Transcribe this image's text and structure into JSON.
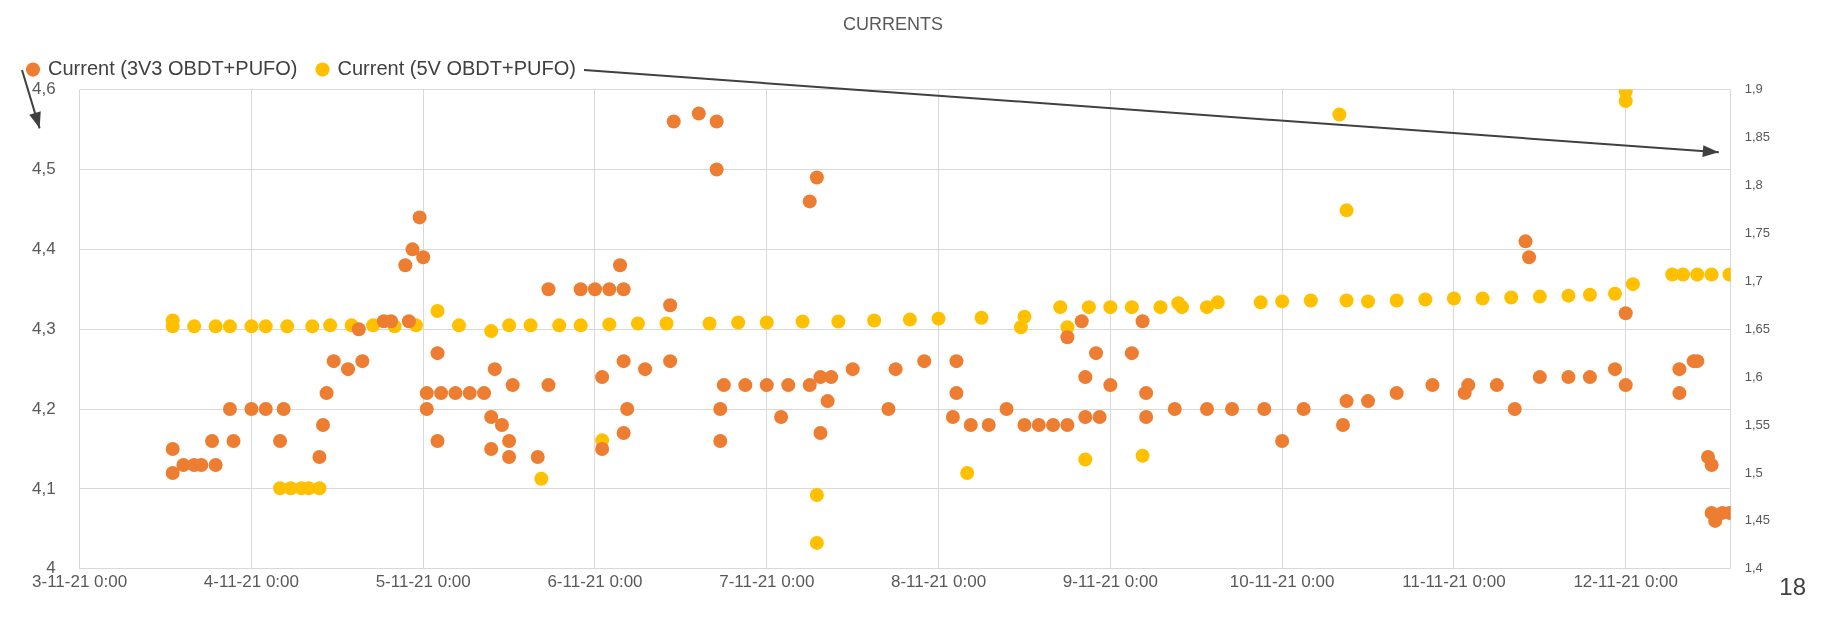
{
  "chart_data": {
    "type": "scatter",
    "title": "CURRENTS",
    "grid": true,
    "legend": "top left",
    "marker": "circle",
    "annotations": [
      "18"
    ],
    "xlim": [
      "--11-03",
      "--11-12T14:40"
    ],
    "xticks": [
      {
        "value": "--11-03",
        "label": "3-11-21 0:00"
      },
      {
        "value": "--11-04",
        "label": "4-11-21 0:00"
      },
      {
        "value": "--11-05",
        "label": "5-11-21 0:00"
      },
      {
        "value": "--11-06",
        "label": "6-11-21 0:00"
      },
      {
        "value": "--11-07",
        "label": "7-11-21 0:00"
      },
      {
        "value": "--11-08",
        "label": "8-11-21 0:00"
      },
      {
        "value": "--11-09",
        "label": "9-11-21 0:00"
      },
      {
        "value": "--11-10",
        "label": "10-11-21 0:00"
      },
      {
        "value": "--11-11",
        "label": "11-11-21 0:00"
      },
      {
        "value": "--11-12",
        "label": "12-11-21 0:00"
      }
    ],
    "ylim": [
      4,
      4.6
    ],
    "yticks": [
      4,
      {
        "value": 4.1,
        "label": "4,1"
      },
      {
        "value": 4.2,
        "label": "4,2"
      },
      {
        "value": 4.3,
        "label": "4,3"
      },
      {
        "value": 4.4,
        "label": "4,4"
      },
      {
        "value": 4.5,
        "label": "4,5"
      },
      {
        "value": 4.6,
        "label": "4,6"
      }
    ],
    "y2lim": [
      1.4,
      1.9
    ],
    "y2ticks": [
      {
        "value": 1.4,
        "label": "1,4"
      },
      {
        "value": 1.45,
        "label": "1,45"
      },
      {
        "value": 1.5,
        "label": "1,5"
      },
      {
        "value": 1.55,
        "label": "1,55"
      },
      {
        "value": 1.6,
        "label": "1,6"
      },
      {
        "value": 1.65,
        "label": "1,65"
      },
      {
        "value": 1.7,
        "label": "1,7"
      },
      {
        "value": 1.75,
        "label": "1,75"
      },
      {
        "value": 1.8,
        "label": "1,8"
      },
      {
        "value": 1.85,
        "label": "1,85"
      },
      {
        "value": 1.9,
        "label": "1,9"
      }
    ],
    "series": [
      {
        "name": "Current (3V3 OBDT+PUFO)",
        "color": "#ed7d31",
        "x": [
          "--11-03T13:00",
          "--11-03T13:00",
          "--11-03T14:30",
          "--11-03T17:00",
          "--11-03T19:00",
          "--11-03T18:30",
          "--11-03T21:30",
          "--11-03T21:00",
          "--11-04T00:00",
          "--11-04T02:00",
          "--11-04T04:30",
          "--11-04T04:00",
          "--11-04T09:30",
          "--11-04T10:00",
          "--11-04T10:30",
          "--11-04T11:30",
          "--11-04T13:30",
          "--11-04T15:30",
          "--11-04T15:00",
          "--11-04T18:30",
          "--11-04T22:00",
          "--11-04T21:30",
          "--11-04T22:30",
          "--11-04T23:30",
          "--11-05T00:00",
          "--11-05T02:00",
          "--11-05T02:00",
          "--11-05T00:30",
          "--11-05T00:30",
          "--11-05T04:30",
          "--11-05T08:30",
          "--11-05T10:00",
          "--11-05T09:30",
          "--11-05T11:00",
          "--11-05T09:30",
          "--11-05T12:00",
          "--11-05T12:00",
          "--11-05T12:30",
          "--11-05T17:30",
          "--11-05T16:00",
          "--11-05T17:30",
          "--11-05T22:00",
          "--11-06T02:00",
          "--11-06T01:00",
          "--11-06T01:00",
          "--11-06T03:30",
          "--11-06T04:00",
          "--11-06T04:00",
          "--11-06T04:30",
          "--11-06T04:00",
          "--11-06T07:00",
          "--11-06T10:30",
          "--11-06T10:30",
          "--11-06T11:00",
          "--11-06T14:30",
          "--11-06T17:00",
          "--11-06T17:00",
          "--11-06T17:30",
          "--11-06T17:30",
          "--11-06T18:00",
          "--11-07T00:00",
          "--11-07T06:00",
          "--11-07T02:00",
          "--11-07T06:00",
          "--11-07T07:00",
          "--11-07T07:30",
          "--11-07T07:30",
          "--11-07T08:30",
          "--11-07T09:00",
          "--11-07T18:00",
          "--11-08T02:30",
          "--11-07T17:00",
          "--11-08T02:00",
          "--11-08T02:30",
          "--11-08T04:30",
          "--11-08T09:30",
          "--11-08T14:00",
          "--11-08T18:00",
          "--11-08T18:00",
          "--11-08T20:00",
          "--11-08T20:30",
          "--11-08T20:30",
          "--11-08T22:00",
          "--11-08T22:30",
          "--11-09T00:00",
          "--11-09T03:00",
          "--11-09T04:30",
          "--11-09T05:00",
          "--11-09T05:00",
          "--11-09T13:30",
          "--11-09T21:30",
          "--11-10T09:00",
          "--11-10T00:00",
          "--11-10T08:30",
          "--11-10T12:00",
          "--11-10T21:00",
          "--11-11T01:30",
          "--11-11T02:00",
          "--11-11T12:00",
          "--11-11T22:30",
          "--11-11T08:30",
          "--11-11T10:00",
          "--11-11T10:30",
          "--11-12T00:00",
          "--11-12T00:00",
          "--11-12T07:30",
          "--11-12T07:30",
          "--11-12T09:30",
          "--11-12T10:00",
          "--11-12T11:30",
          "--11-12T12:00",
          "--11-12T12:00",
          "--11-12T14:30",
          "--11-12T12:30",
          "--11-05T02:30",
          "--11-05T06:30",
          "--11-06T21:00",
          "--11-07T03:00",
          "--11-07T12:00",
          "--11-07T22:00",
          "--11-08T07:00",
          "--11-08T12:00",
          "--11-08T16:00",
          "--11-09T09:00",
          "--11-09T17:00",
          "--11-10T03:00",
          "--11-10T16:00",
          "--11-11T06:00",
          "--11-11T16:00",
          "--11-11T19:00",
          "--11-12T13:30",
          "--11-03T16:00",
          "--11-04T19:30",
          "--11-06T00:00"
        ],
        "values": [
          4.15,
          4.12,
          4.13,
          4.13,
          4.13,
          4.16,
          4.16,
          4.2,
          4.2,
          4.2,
          4.2,
          4.16,
          4.14,
          4.18,
          4.22,
          4.26,
          4.25,
          4.26,
          4.3,
          4.31,
          4.31,
          4.38,
          4.4,
          4.44,
          4.39,
          4.27,
          4.16,
          4.2,
          4.22,
          4.22,
          4.22,
          4.25,
          4.19,
          4.18,
          4.15,
          4.16,
          4.14,
          4.23,
          4.23,
          4.14,
          4.35,
          4.35,
          4.35,
          4.15,
          4.24,
          4.38,
          4.35,
          4.17,
          4.2,
          4.26,
          4.25,
          4.26,
          4.33,
          4.56,
          4.57,
          4.56,
          4.5,
          4.16,
          4.2,
          4.23,
          4.23,
          4.23,
          4.19,
          4.46,
          4.49,
          4.24,
          4.17,
          4.21,
          4.24,
          4.25,
          4.26,
          4.2,
          4.19,
          4.22,
          4.18,
          4.2,
          4.18,
          4.18,
          4.29,
          4.31,
          4.19,
          4.24,
          4.27,
          4.19,
          4.23,
          4.27,
          4.31,
          4.22,
          4.19,
          4.2,
          4.2,
          4.21,
          4.16,
          4.18,
          4.21,
          4.23,
          4.22,
          4.23,
          4.24,
          4.25,
          4.2,
          4.41,
          4.39,
          4.32,
          4.23,
          4.22,
          4.25,
          4.26,
          4.26,
          4.14,
          4.13,
          4.07,
          4.07,
          4.06,
          4.22,
          4.22,
          4.23,
          4.23,
          4.25,
          4.26,
          4.18,
          4.18,
          4.18,
          4.2,
          4.2,
          4.2,
          4.22,
          4.23,
          4.24,
          4.24,
          4.07,
          4.13,
          4.31,
          4.35
        ]
      },
      {
        "name": "Current (5V OBDT+PUFO)",
        "color": "#ffc000",
        "axis": "y2",
        "x": [
          "--11-03T13:00",
          "--11-03T13:00",
          "--11-03T21:00",
          "--11-04T05:00",
          "--11-04T04:00",
          "--11-04T07:00",
          "--11-04T09:30",
          "--11-04T08:30",
          "--11-04T20:00",
          "--11-05T02:00",
          "--11-05T09:30",
          "--11-05T12:00",
          "--11-05T16:30",
          "--11-06T01:00",
          "--11-06T02:00",
          "--11-06T16:00",
          "--11-07T05:00",
          "--11-07T20:00",
          "--11-08T12:00",
          "--11-07T07:00",
          "--11-07T07:00",
          "--11-08T04:00",
          "--11-08T11:30",
          "--11-08T18:00",
          "--11-08T17:00",
          "--11-09T03:00",
          "--11-09T13:30",
          "--11-08T20:30",
          "--11-09T04:30",
          "--11-09T09:30",
          "--11-09T21:00",
          "--11-10T09:00",
          "--11-10T08:00",
          "--11-10T09:00",
          "--11-10T12:00",
          "--11-11T00:00",
          "--11-11T12:00",
          "--11-11T22:30",
          "--11-12T01:00",
          "--11-12T00:00",
          "--11-12T00:00",
          "--11-12T06:30",
          "--11-12T10:00",
          "--11-12T14:30",
          "--11-03T16:00",
          "--11-03T19:00",
          "--11-04T00:00",
          "--11-04T02:00",
          "--11-04T05:30",
          "--11-04T08:00",
          "--11-04T11:00",
          "--11-04T14:00",
          "--11-04T17:00",
          "--11-04T23:00",
          "--11-05T05:00",
          "--11-05T15:00",
          "--11-05T19:00",
          "--11-05T22:00",
          "--11-06T06:00",
          "--11-06T10:00",
          "--11-06T20:00",
          "--11-07T00:00",
          "--11-07T10:00",
          "--11-07T15:00",
          "--11-08T00:00",
          "--11-08T06:00",
          "--11-08T21:00",
          "--11-09T00:00",
          "--11-09T07:00",
          "--11-09T10:00",
          "--11-09T15:00",
          "--11-10T00:00",
          "--11-10T04:00",
          "--11-10T16:00",
          "--11-10T20:00",
          "--11-11T04:00",
          "--11-11T08:00",
          "--11-11T16:00",
          "--11-11T19:00",
          "--11-12T08:00",
          "--11-12T12:00"
        ],
        "values": [
          1.653,
          1.659,
          1.653,
          1.653,
          1.484,
          1.484,
          1.484,
          1.653,
          1.653,
          1.669,
          1.648,
          1.654,
          1.494,
          1.534,
          1.655,
          1.656,
          1.658,
          1.66,
          1.663,
          1.477,
          1.427,
          1.5,
          1.652,
          1.652,
          1.673,
          1.673,
          1.673,
          1.514,
          1.518,
          1.677,
          1.678,
          1.68,
          1.874,
          1.774,
          1.679,
          1.682,
          1.684,
          1.687,
          1.697,
          1.898,
          1.888,
          1.707,
          1.707,
          1.707,
          1.653,
          1.653,
          1.653,
          1.653,
          1.484,
          1.484,
          1.654,
          1.654,
          1.654,
          1.654,
          1.654,
          1.654,
          1.654,
          1.654,
          1.656,
          1.656,
          1.657,
          1.657,
          1.658,
          1.659,
          1.661,
          1.662,
          1.673,
          1.673,
          1.673,
          1.673,
          1.678,
          1.679,
          1.68,
          1.68,
          1.681,
          1.682,
          1.683,
          1.685,
          1.686,
          1.707,
          1.707
        ]
      }
    ]
  }
}
